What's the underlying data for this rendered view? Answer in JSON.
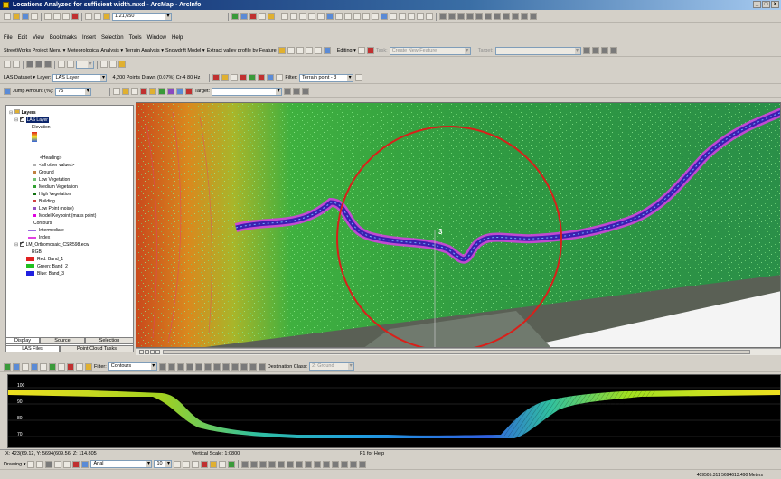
{
  "window": {
    "title": "Locations Analyzed for sufficient width.mxd - ArcMap - ArcInfo"
  },
  "toolbar_row1": {
    "scale": "1:21,650"
  },
  "menubar": {
    "items": [
      {
        "label": "File",
        "key": "F"
      },
      {
        "label": "Edit",
        "key": "E"
      },
      {
        "label": "View",
        "key": "V"
      },
      {
        "label": "Bookmarks",
        "key": "B"
      },
      {
        "label": "Insert",
        "key": "I"
      },
      {
        "label": "Selection",
        "key": "S"
      },
      {
        "label": "Tools",
        "key": "T"
      },
      {
        "label": "Window",
        "key": "W"
      },
      {
        "label": "Help",
        "key": "H"
      }
    ]
  },
  "toolbar_row2": {
    "items": [
      "StreetWorks Project Menu ▾",
      "Meteorological Analysis ▾",
      "Terrain Analysis ▾",
      "Snowdrift Model ▾",
      "Extract valley profile by Feature"
    ],
    "editor": "Editing ▾",
    "task_label": "Task:",
    "task_value": "Create New Feature",
    "target_label": "Target:"
  },
  "las_toolbar": {
    "label": "LAS Dataset ▾",
    "layer_label": "Layer:",
    "layer_value": "LAS Layer",
    "points_info": "4,200 Points Drawn (0.07%) Cr-4 80 Hz",
    "filter_label": "Filter:",
    "filter_value": "Terrain point - 3"
  },
  "jump_toolbar": {
    "jump_label": "Jump Amount (%):",
    "jump_value": "75",
    "target_label": "Target:"
  },
  "toc": {
    "root": "Layers",
    "las_layer": "LAS Layer",
    "elevation": "Elevation",
    "heading_group": "<Heading>",
    "classes": [
      {
        "label": "<all other values>",
        "color": "#b0b0b0"
      },
      {
        "label": "Ground",
        "color": "#c08040"
      },
      {
        "label": "Low Vegetation",
        "color": "#70c070"
      },
      {
        "label": "Medium Vegetation",
        "color": "#30a030"
      },
      {
        "label": "High Vegetation",
        "color": "#107010"
      },
      {
        "label": "Building",
        "color": "#d04040"
      },
      {
        "label": "Low Point (noise)",
        "color": "#9050c0"
      },
      {
        "label": "Model Keypoint (mass point)",
        "color": "#e000e0"
      }
    ],
    "contours": "Contours",
    "contour_items": [
      {
        "label": "Intermediate",
        "color": "#9a6ae0"
      },
      {
        "label": "Index",
        "color": "#e040e0"
      }
    ],
    "ortho": "LM_Orthomosaic_CSR598.ecw",
    "rgb": "RGB",
    "bands": [
      {
        "label": "Red:   Band_1",
        "color": "#e02020"
      },
      {
        "label": "Green: Band_2",
        "color": "#20c020"
      },
      {
        "label": "Blue:  Band_3",
        "color": "#2020e0"
      }
    ],
    "tabs": [
      "Display",
      "Source",
      "Selection"
    ],
    "bottom_tabs": [
      "LAS Files",
      "Point Cloud Tasks"
    ]
  },
  "map": {
    "marker_label": "3"
  },
  "profile_toolbar": {
    "filter_label": "Filter:",
    "filter_value": "Contours",
    "destination_label": "Destination Class:",
    "destination_value": "2: Ground"
  },
  "profile": {
    "y_ticks": [
      "100",
      "90",
      "80",
      "70"
    ]
  },
  "status": {
    "coords": "X: 423(69.12, Y: 5694(609.56, Z: 114.805",
    "vertical_scale": "Vertical Scale: 1:0800",
    "help": "F1 for Help"
  },
  "drawing_toolbar": {
    "drawing_label": "Drawing ▾",
    "font": "Arial",
    "font_size": "10"
  },
  "map_status": "409505.311  5694613.490 Meters"
}
